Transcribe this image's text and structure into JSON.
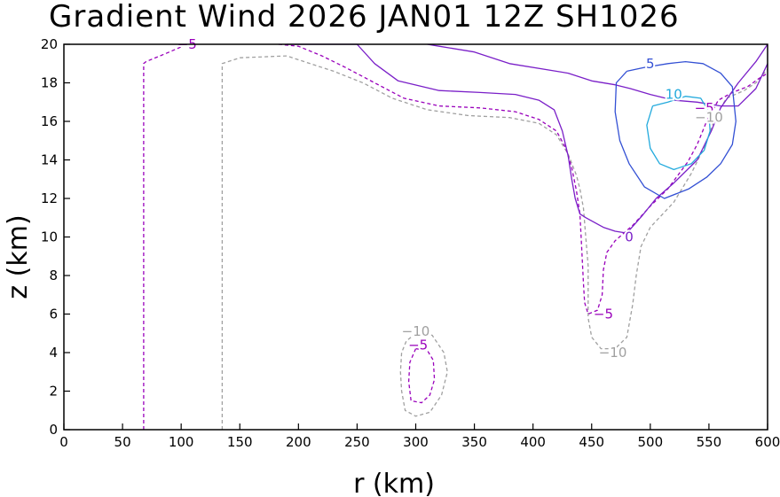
{
  "chart_data": {
    "type": "contour",
    "title": "Gradient Wind 2026 JAN01 12Z   SH1026",
    "xlabel": "r (km)",
    "ylabel": "z (km)",
    "xlim": [
      0,
      600
    ],
    "ylim": [
      0,
      20
    ],
    "xticks": [
      0,
      50,
      100,
      150,
      200,
      250,
      300,
      350,
      400,
      450,
      500,
      550,
      600
    ],
    "yticks": [
      0,
      2,
      4,
      6,
      8,
      10,
      12,
      14,
      16,
      18,
      20
    ],
    "grid": false,
    "contours": [
      {
        "level": -10,
        "color": "#a0a0a0",
        "style": "dashed",
        "labels": [
          "-10",
          "-10",
          "-10"
        ],
        "paths": [
          [
            [
              135,
              0
            ],
            [
              135,
              19
            ],
            [
              150,
              19.3
            ],
            [
              190,
              19.4
            ],
            [
              210,
              19.0
            ],
            [
              230,
              18.6
            ],
            [
              255,
              18.0
            ],
            [
              280,
              17.2
            ],
            [
              310,
              16.6
            ],
            [
              345,
              16.3
            ],
            [
              380,
              16.2
            ],
            [
              405,
              15.9
            ],
            [
              420,
              15.3
            ],
            [
              430,
              14.3
            ],
            [
              437,
              13.2
            ],
            [
              440,
              12.5
            ],
            [
              443,
              11.5
            ],
            [
              445,
              10
            ],
            [
              447,
              8.5
            ],
            [
              447,
              7
            ],
            [
              447,
              5.8
            ],
            [
              450,
              4.8
            ],
            [
              458,
              4.2
            ],
            [
              470,
              4.2
            ],
            [
              480,
              4.8
            ],
            [
              485,
              6.5
            ],
            [
              488,
              8
            ],
            [
              492,
              9.5
            ],
            [
              500,
              10.5
            ],
            [
              520,
              11.8
            ],
            [
              535,
              13.3
            ],
            [
              547,
              14.8
            ],
            [
              556,
              16.3
            ],
            [
              565,
              17.2
            ],
            [
              580,
              17.6
            ],
            [
              590,
              18.0
            ],
            [
              600,
              18.7
            ]
          ],
          [
            [
              300,
              5.0
            ],
            [
              292,
              4.6
            ],
            [
              288,
              4.0
            ],
            [
              287,
              3.0
            ],
            [
              288,
              2.0
            ],
            [
              291,
              1.0
            ],
            [
              300,
              0.7
            ],
            [
              312,
              0.9
            ],
            [
              322,
              1.8
            ],
            [
              327,
              3.0
            ],
            [
              324,
              4.0
            ],
            [
              314,
              4.9
            ],
            [
              300,
              5.0
            ]
          ]
        ]
      },
      {
        "level": -5,
        "color": "#9900bb",
        "style": "dashed",
        "labels": [
          "-5",
          "-5",
          "-5",
          "-5"
        ],
        "paths": [
          [
            [
              68,
              0
            ],
            [
              68,
              19
            ],
            [
              70,
              19.1
            ],
            [
              90,
              19.6
            ],
            [
              105,
              20
            ]
          ],
          [
            [
              183,
              20
            ],
            [
              200,
              19.9
            ],
            [
              220,
              19.4
            ],
            [
              240,
              18.8
            ],
            [
              265,
              18.0
            ],
            [
              290,
              17.2
            ],
            [
              320,
              16.8
            ],
            [
              355,
              16.7
            ],
            [
              385,
              16.5
            ],
            [
              405,
              16.1
            ],
            [
              420,
              15.5
            ],
            [
              428,
              14.6
            ],
            [
              433,
              13.6
            ],
            [
              437,
              12.4
            ],
            [
              440,
              11.2
            ],
            [
              441,
              10
            ],
            [
              442,
              8.8
            ],
            [
              443,
              7.6
            ],
            [
              444,
              6.6
            ],
            [
              447,
              6.0
            ],
            [
              455,
              6.2
            ],
            [
              459,
              7.0
            ],
            [
              460,
              8.3
            ],
            [
              463,
              9.2
            ],
            [
              470,
              9.8
            ],
            [
              485,
              10.6
            ],
            [
              500,
              11.6
            ],
            [
              515,
              12.5
            ],
            [
              532,
              13.9
            ],
            [
              540,
              14.8
            ],
            [
              548,
              16.0
            ],
            [
              558,
              17.1
            ],
            [
              570,
              17.5
            ],
            [
              583,
              17.8
            ],
            [
              592,
              18.2
            ],
            [
              600,
              18.5
            ]
          ],
          [
            [
              300,
              4.2
            ],
            [
              295,
              3.5
            ],
            [
              294,
              2.5
            ],
            [
              296,
              1.5
            ],
            [
              305,
              1.4
            ],
            [
              312,
              1.8
            ],
            [
              316,
              2.6
            ],
            [
              315,
              3.6
            ],
            [
              310,
              4.1
            ],
            [
              300,
              4.2
            ]
          ]
        ]
      },
      {
        "level": 0,
        "color": "#7a1fc8",
        "style": "solid",
        "labels": [
          "0"
        ],
        "paths": [
          [
            [
              310,
              20
            ],
            [
              320,
              19.9
            ],
            [
              350,
              19.6
            ],
            [
              380,
              19.0
            ],
            [
              430,
              18.5
            ],
            [
              450,
              18.1
            ],
            [
              470,
              17.9
            ],
            [
              483,
              17.7
            ],
            [
              500,
              17.4
            ],
            [
              520,
              17.1
            ],
            [
              540,
              17.0
            ],
            [
              560,
              16.8
            ],
            [
              575,
              16.8
            ],
            [
              590,
              17.7
            ],
            [
              600,
              19.0
            ]
          ],
          [
            [
              190,
              20
            ],
            [
              250,
              20
            ],
            [
              265,
              19.0
            ],
            [
              285,
              18.1
            ],
            [
              320,
              17.6
            ],
            [
              355,
              17.5
            ],
            [
              385,
              17.4
            ],
            [
              405,
              17.1
            ],
            [
              418,
              16.6
            ],
            [
              425,
              15.5
            ],
            [
              430,
              14.2
            ],
            [
              433,
              13.0
            ],
            [
              436,
              12.0
            ],
            [
              440,
              11.2
            ],
            [
              445,
              11.0
            ],
            [
              460,
              10.5
            ],
            [
              470,
              10.3
            ],
            [
              480,
              10.2
            ],
            [
              493,
              11.1
            ],
            [
              505,
              12.0
            ],
            [
              520,
              12.8
            ],
            [
              540,
              14.0
            ],
            [
              552,
              15.5
            ],
            [
              560,
              16.7
            ],
            [
              575,
              18.0
            ],
            [
              590,
              19.1
            ],
            [
              600,
              20.0
            ]
          ]
        ]
      },
      {
        "level": 5,
        "color": "#3350d4",
        "style": "solid",
        "labels": [
          "5"
        ],
        "paths": [
          [
            [
              480,
              18.6
            ],
            [
              495,
              18.8
            ],
            [
              515,
              19.0
            ],
            [
              530,
              19.1
            ],
            [
              545,
              19.0
            ],
            [
              560,
              18.5
            ],
            [
              570,
              17.8
            ],
            [
              573,
              16.0
            ],
            [
              570,
              14.8
            ],
            [
              560,
              13.8
            ],
            [
              548,
              13.1
            ],
            [
              533,
              12.5
            ],
            [
              512,
              12.0
            ],
            [
              495,
              12.6
            ],
            [
              482,
              13.8
            ],
            [
              474,
              15.0
            ],
            [
              470,
              16.5
            ],
            [
              471,
              18.0
            ],
            [
              480,
              18.6
            ]
          ]
        ]
      },
      {
        "level": 10,
        "color": "#22aadd",
        "style": "solid",
        "labels": [
          "10"
        ],
        "paths": [
          [
            [
              502,
              16.8
            ],
            [
              515,
              17.0
            ],
            [
              530,
              17.3
            ],
            [
              543,
              17.2
            ],
            [
              550,
              16.5
            ],
            [
              551,
              15.5
            ],
            [
              546,
              14.5
            ],
            [
              535,
              13.8
            ],
            [
              520,
              13.5
            ],
            [
              508,
              13.8
            ],
            [
              500,
              14.6
            ],
            [
              497,
              15.8
            ],
            [
              502,
              16.8
            ]
          ]
        ]
      }
    ],
    "contour_labels": [
      {
        "text": "-5",
        "x": 105,
        "y": 20.0,
        "level": -5
      },
      {
        "text": "-5",
        "x": 546,
        "y": 16.7,
        "level": -5
      },
      {
        "text": "-10",
        "x": 550,
        "y": 16.2,
        "level": -10
      },
      {
        "text": "0",
        "x": 482,
        "y": 10.0,
        "level": 0
      },
      {
        "text": "5",
        "x": 500,
        "y": 19.0,
        "level": 5
      },
      {
        "text": "10",
        "x": 520,
        "y": 17.4,
        "level": 10
      },
      {
        "text": "-5",
        "x": 460,
        "y": 6.0,
        "level": -5
      },
      {
        "text": "-10",
        "x": 468,
        "y": 4.0,
        "level": -10
      },
      {
        "text": "-10",
        "x": 300,
        "y": 5.1,
        "level": -10
      },
      {
        "text": "-5",
        "x": 302,
        "y": 4.4,
        "level": -5
      }
    ]
  }
}
